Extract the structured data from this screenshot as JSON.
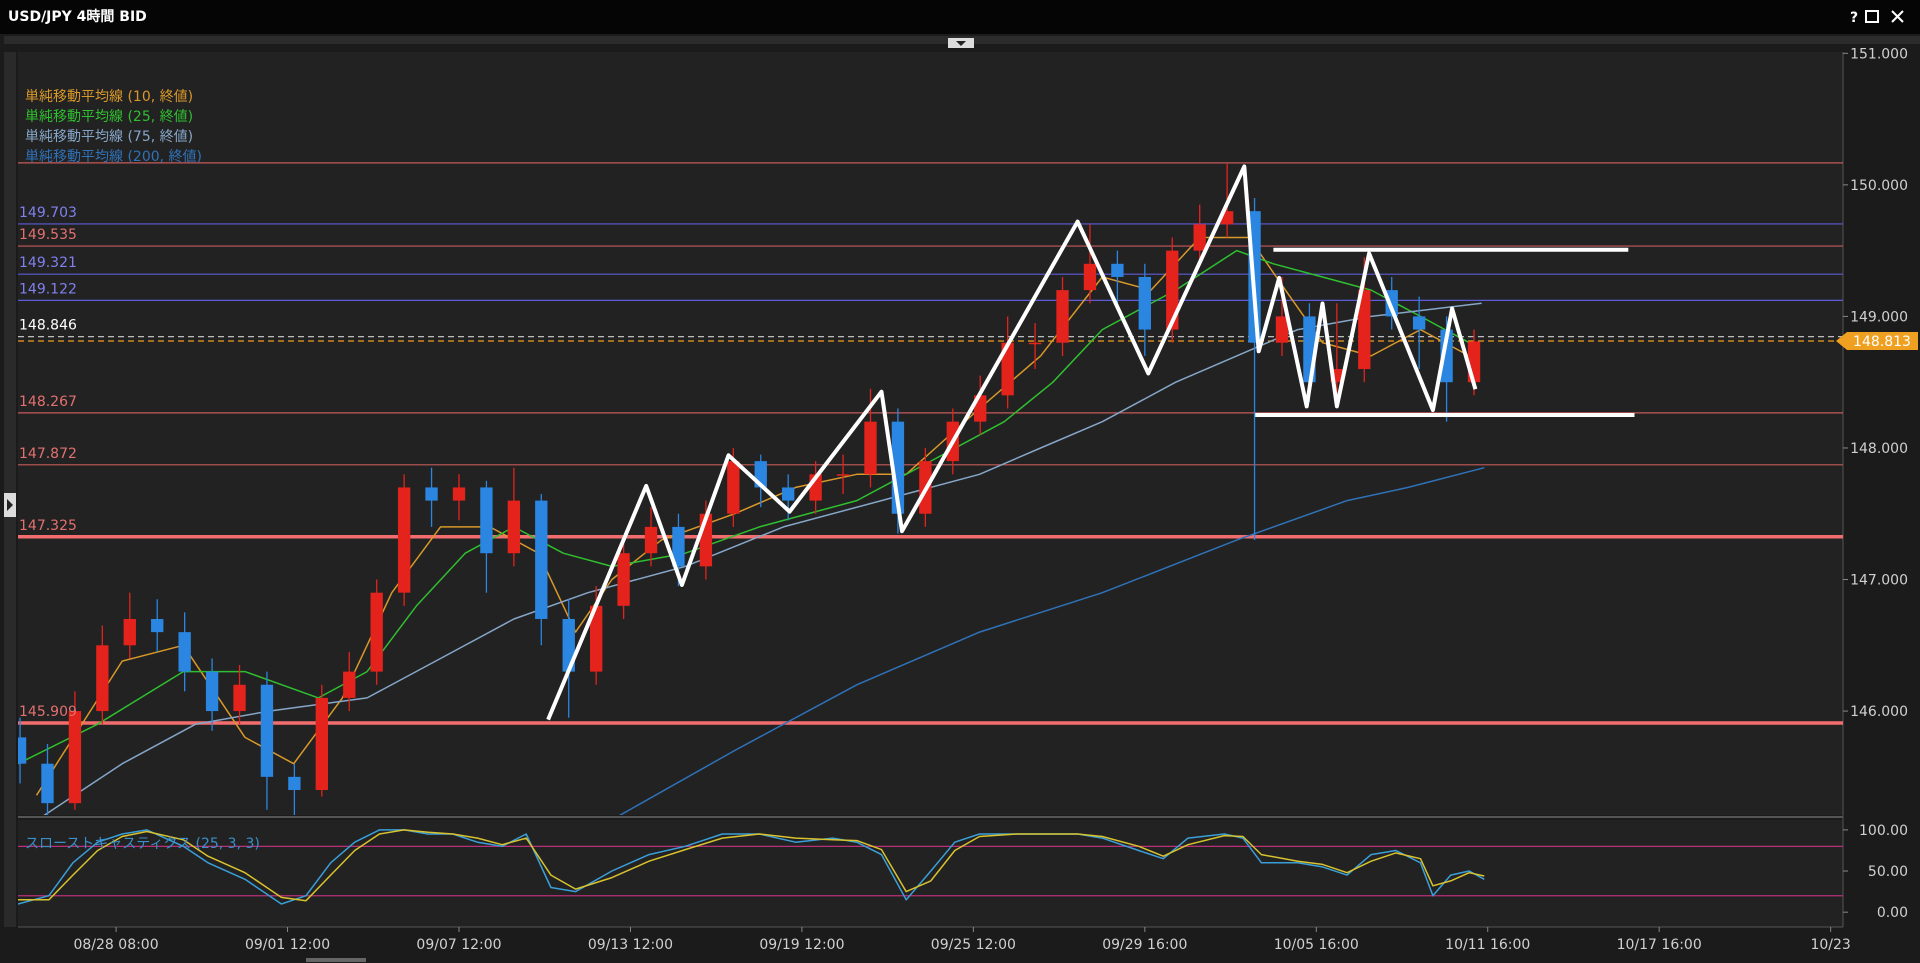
{
  "window": {
    "title": "USD/JPY 4時間 BID",
    "help": "?"
  },
  "chart_data": {
    "type": "candlestick",
    "xlim": [
      -14.3,
      251.8
    ],
    "xticks": [
      {
        "value": 0,
        "label": "08/28 08:00"
      },
      {
        "value": 25,
        "label": "09/01 12:00"
      },
      {
        "value": 50,
        "label": "09/07 12:00"
      },
      {
        "value": 75,
        "label": "09/13 12:00"
      },
      {
        "value": 100,
        "label": "09/19 12:00"
      },
      {
        "value": 125,
        "label": "09/25 12:00"
      },
      {
        "value": 150,
        "label": "09/29 16:00"
      },
      {
        "value": 175,
        "label": "10/05 16:00"
      },
      {
        "value": 200,
        "label": "10/11 16:00"
      },
      {
        "value": 225,
        "label": "10/17 16:00"
      },
      {
        "value": 250,
        "label": "10/23"
      }
    ],
    "ylim": [
      145.21,
      151.01
    ],
    "yticks": [
      {
        "value": 146,
        "label": "146.000"
      },
      {
        "value": 147,
        "label": "147.000"
      },
      {
        "value": 148,
        "label": "148.000"
      },
      {
        "value": 149,
        "label": "149.000"
      },
      {
        "value": 150,
        "label": "150.000"
      },
      {
        "value": 151,
        "label": "151.000"
      }
    ],
    "grid": false,
    "candles": {
      "up_color": "#e3231c",
      "down_color": "#2a86e0",
      "x": [
        -14,
        -10,
        -6,
        -2,
        2,
        6,
        10,
        14,
        18,
        22,
        26,
        30,
        34,
        38,
        42,
        46,
        50,
        54,
        58,
        62,
        66,
        70,
        74,
        78,
        82,
        86,
        90,
        94,
        98,
        102,
        106,
        110,
        114,
        118,
        122,
        126,
        130,
        134,
        138,
        142,
        146,
        150,
        154,
        158,
        162,
        166,
        170,
        174,
        178,
        182,
        186,
        190,
        194,
        198
      ],
      "open": [
        145.8,
        145.6,
        145.3,
        146.0,
        146.5,
        146.7,
        146.6,
        146.3,
        146.0,
        146.2,
        145.5,
        145.4,
        146.1,
        146.3,
        146.9,
        147.7,
        147.6,
        147.7,
        147.2,
        147.6,
        146.7,
        146.3,
        146.8,
        147.2,
        147.4,
        147.1,
        147.5,
        147.9,
        147.7,
        147.6,
        147.8,
        147.8,
        148.2,
        147.5,
        147.9,
        148.2,
        148.4,
        148.8,
        148.8,
        149.2,
        149.4,
        149.3,
        148.9,
        149.5,
        149.7,
        149.8,
        148.8,
        149.0,
        148.5,
        148.6,
        149.2,
        149.0,
        148.9,
        148.5
      ],
      "high": [
        145.95,
        145.75,
        146.15,
        146.65,
        146.9,
        146.85,
        146.75,
        146.4,
        146.35,
        146.3,
        145.6,
        146.2,
        146.45,
        147.0,
        147.8,
        147.85,
        147.8,
        147.75,
        147.85,
        147.65,
        146.85,
        146.95,
        147.3,
        147.55,
        147.5,
        147.6,
        148.0,
        147.95,
        147.8,
        147.9,
        147.95,
        148.45,
        148.3,
        148.0,
        148.3,
        148.55,
        149.0,
        148.95,
        149.3,
        149.7,
        149.5,
        149.4,
        149.6,
        149.85,
        150.16,
        149.9,
        149.3,
        149.1,
        149.1,
        149.45,
        149.3,
        149.15,
        149.0,
        148.9
      ],
      "low": [
        145.45,
        145.2,
        145.25,
        145.9,
        146.4,
        146.45,
        146.15,
        145.85,
        145.9,
        145.25,
        145.2,
        145.35,
        146.0,
        146.2,
        146.8,
        147.4,
        147.45,
        146.9,
        147.1,
        146.5,
        145.95,
        146.2,
        146.7,
        147.1,
        146.95,
        147.0,
        147.4,
        147.55,
        147.45,
        147.5,
        147.65,
        147.7,
        147.35,
        147.4,
        147.8,
        148.1,
        148.3,
        148.6,
        148.7,
        149.1,
        149.1,
        148.7,
        148.8,
        149.4,
        149.6,
        147.3,
        148.7,
        148.35,
        148.35,
        148.5,
        148.9,
        148.6,
        148.2,
        148.4
      ],
      "close": [
        145.6,
        145.3,
        146.0,
        146.5,
        146.7,
        146.6,
        146.3,
        146.0,
        146.2,
        145.5,
        145.4,
        146.1,
        146.3,
        146.9,
        147.7,
        147.6,
        147.7,
        147.2,
        147.6,
        146.7,
        146.3,
        146.8,
        147.2,
        147.4,
        147.1,
        147.5,
        147.9,
        147.7,
        147.6,
        147.8,
        147.8,
        148.2,
        147.5,
        147.9,
        148.2,
        148.4,
        148.8,
        148.8,
        149.2,
        149.4,
        149.3,
        148.9,
        149.5,
        149.7,
        149.8,
        148.8,
        149.0,
        148.5,
        148.6,
        149.2,
        149.0,
        148.9,
        148.5,
        148.81
      ]
    },
    "series": [
      {
        "name": "単純移動平均線 (10, 終値)",
        "color": "#d9982a",
        "x": [
          -11.6,
          0.9,
          9.8,
          18.8,
          25.9,
          33.0,
          40.2,
          47.3,
          54.5,
          61.6,
          67.0,
          72.3,
          79.5,
          90.2,
          99.1,
          108.0,
          115.2,
          125.9,
          134.8,
          143.8,
          150.9,
          158.0,
          165.2,
          170.5,
          175.9,
          183.0,
          190.2,
          197.3
        ],
        "values": [
          145.36,
          146.38,
          146.5,
          145.8,
          145.6,
          146.1,
          146.9,
          147.4,
          147.4,
          147.2,
          146.6,
          147.0,
          147.3,
          147.5,
          147.7,
          147.8,
          147.8,
          148.3,
          148.7,
          149.3,
          149.2,
          149.6,
          149.6,
          149.2,
          148.8,
          148.7,
          148.9,
          148.7
        ]
      },
      {
        "name": "単純移動平均線 (25, 終値)",
        "color": "#2fbf2f",
        "x": [
          -14.3,
          -2.7,
          9.8,
          18.8,
          29.5,
          36.6,
          43.8,
          50.9,
          58.0,
          65.2,
          72.3,
          83.0,
          93.8,
          108.0,
          118.8,
          129.5,
          136.6,
          143.8,
          154.5,
          163.4,
          168.75,
          175.9,
          183.0,
          190.2,
          197.3
        ],
        "values": [
          145.6,
          145.9,
          146.3,
          146.3,
          146.1,
          146.3,
          146.8,
          147.2,
          147.4,
          147.2,
          147.1,
          147.2,
          147.4,
          147.6,
          147.9,
          148.2,
          148.5,
          148.9,
          149.2,
          149.5,
          149.4,
          149.3,
          149.2,
          149.0,
          148.8
        ]
      },
      {
        "name": "単純移動平均線 (75, 終値)",
        "color": "#86a6c8",
        "x": [
          -10.7,
          0.9,
          11.6,
          22.3,
          36.6,
          47.3,
          58.0,
          68.8,
          83.0,
          97.3,
          111.6,
          125.9,
          134.8,
          143.8,
          154.5,
          163.4,
          172.3,
          183.0,
          199.1
        ],
        "values": [
          145.2,
          145.6,
          145.9,
          146.0,
          146.1,
          146.4,
          146.7,
          146.9,
          147.1,
          147.4,
          147.6,
          147.8,
          148.0,
          148.2,
          148.5,
          148.7,
          148.9,
          149.0,
          149.1
        ]
      },
      {
        "name": "単純移動平均線 (200, 終値)",
        "color": "#2f72b8",
        "x": [
          73.2,
          90.2,
          108.0,
          125.9,
          143.8,
          163.4,
          179.5,
          188.4,
          199.5
        ],
        "values": [
          145.2,
          145.7,
          146.2,
          146.6,
          146.9,
          147.3,
          147.6,
          147.7,
          147.85
        ]
      }
    ],
    "levels": [
      {
        "value": 150.167,
        "color": "#c65a5a",
        "width": 1.2
      },
      {
        "value": 149.703,
        "color": "#5c5cd6",
        "width": 1.2,
        "label_color": "#8080ee"
      },
      {
        "value": 149.535,
        "color": "#c65a5a",
        "width": 1.2,
        "label_color": "#e37070"
      },
      {
        "value": 149.321,
        "color": "#5c5cd6",
        "width": 1.2,
        "label_color": "#8080ee"
      },
      {
        "value": 149.122,
        "color": "#5c5cd6",
        "width": 1.2,
        "label_color": "#8080ee"
      },
      {
        "value": 148.846,
        "color": "#cfcfcf",
        "width": 1.2,
        "dash": true,
        "label_color": "#ffffff"
      },
      {
        "value": 148.267,
        "color": "#c65a5a",
        "width": 1.2,
        "label_color": "#e37070"
      },
      {
        "value": 147.872,
        "color": "#c65a5a",
        "width": 1.2,
        "label_color": "#e37070"
      },
      {
        "value": 147.325,
        "color": "#f26d6d",
        "width": 3.5,
        "label_color": "#e37070"
      },
      {
        "value": 145.909,
        "color": "#f26d6d",
        "width": 3.5,
        "label_color": "#e37070"
      }
    ],
    "last_price": {
      "value": 148.813,
      "color": "#f0a020"
    },
    "annotations": [
      {
        "color": "#ffffff",
        "x": [
          63.0,
          77.3,
          82.5,
          89.3,
          98.2,
          111.6,
          114.6,
          140.2,
          150.5,
          164.5,
          166.6,
          169.6,
          173.6,
          175.9,
          178.0,
          182.7,
          192.0,
          194.8,
          198.2
        ],
        "y": [
          145.935,
          147.712,
          146.958,
          147.944,
          147.516,
          148.428,
          147.367,
          149.721,
          148.567,
          150.14,
          148.735,
          149.293,
          148.316,
          149.098,
          148.316,
          149.479,
          148.288,
          149.06,
          148.447
        ]
      },
      {
        "color": "#ffffff",
        "x": [
          168.75,
          220.5
        ],
        "y": [
          149.507,
          149.507
        ]
      },
      {
        "color": "#ffffff",
        "x": [
          166.1,
          221.4
        ],
        "y": [
          148.251,
          148.251
        ]
      }
    ],
    "stochastic": {
      "title": "スローストキャスティクス (25, 3, 3)",
      "ylim": [
        -18,
        112
      ],
      "yticks": [
        {
          "value": 0,
          "label": "0.00"
        },
        {
          "value": 50,
          "label": "50.00"
        },
        {
          "value": 100,
          "label": "100.00"
        }
      ],
      "levels": [
        80,
        20
      ],
      "level_color": "#b8307a",
      "series": [
        {
          "color": "#3a9fd8",
          "x": [
            -14.3,
            -9.8,
            -6.3,
            -2.7,
            0.9,
            4.5,
            9.8,
            13.4,
            18.8,
            24.1,
            27.7,
            31.3,
            34.8,
            38.4,
            42.0,
            45.5,
            49.1,
            52.7,
            56.3,
            59.8,
            63.4,
            67.0,
            72.3,
            77.7,
            83.0,
            88.4,
            93.8,
            99.1,
            104.5,
            108.0,
            111.6,
            115.2,
            118.8,
            122.3,
            125.9,
            131.3,
            136.6,
            140.2,
            143.8,
            149.1,
            152.7,
            156.3,
            161.6,
            164.3,
            167.0,
            172.3,
            175.9,
            179.5,
            183.0,
            186.6,
            190.2,
            192.0,
            194.6,
            197.3,
            199.5
          ],
          "values": [
            10,
            20,
            60,
            85,
            95,
            100,
            80,
            60,
            40,
            10,
            20,
            60,
            85,
            100,
            100,
            95,
            95,
            85,
            80,
            95,
            30,
            25,
            50,
            70,
            80,
            95,
            95,
            85,
            90,
            85,
            70,
            15,
            50,
            85,
            95,
            95,
            95,
            95,
            90,
            75,
            65,
            90,
            95,
            90,
            60,
            60,
            55,
            45,
            70,
            75,
            60,
            20,
            45,
            50,
            40
          ]
        },
        {
          "color": "#d8c22e",
          "x": [
            -14.3,
            -9.8,
            -6.3,
            -2.7,
            0.9,
            4.5,
            9.8,
            13.4,
            18.8,
            24.1,
            27.7,
            31.3,
            34.8,
            38.4,
            42.0,
            45.5,
            49.1,
            52.7,
            56.3,
            59.8,
            63.4,
            67.0,
            72.3,
            77.7,
            83.0,
            88.4,
            93.8,
            99.1,
            104.5,
            108.0,
            111.6,
            115.2,
            118.8,
            122.3,
            125.9,
            131.3,
            136.6,
            140.2,
            143.8,
            149.1,
            152.7,
            156.3,
            161.6,
            164.3,
            167.0,
            172.3,
            175.9,
            179.5,
            183.0,
            186.6,
            190.2,
            192.0,
            194.6,
            197.3,
            199.5
          ],
          "values": [
            15,
            15,
            45,
            75,
            92,
            98,
            88,
            68,
            48,
            18,
            14,
            45,
            75,
            95,
            100,
            97,
            95,
            90,
            82,
            90,
            45,
            28,
            42,
            62,
            76,
            90,
            95,
            90,
            88,
            87,
            76,
            25,
            38,
            75,
            92,
            95,
            95,
            95,
            92,
            80,
            68,
            82,
            93,
            92,
            70,
            62,
            58,
            48,
            62,
            72,
            65,
            32,
            38,
            48,
            44
          ]
        }
      ]
    }
  }
}
